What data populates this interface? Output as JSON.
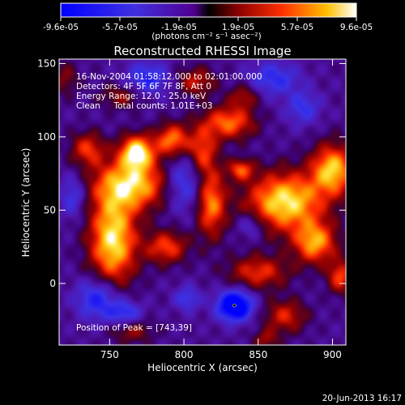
{
  "colorbar": {
    "ticks": [
      "-9.6e-05",
      "-5.7e-05",
      "-1.9e-05",
      "1.9e-05",
      "5.7e-05",
      "9.6e-05"
    ],
    "unit_label": "(photons cm⁻² s⁻¹ asec⁻²)",
    "range": [
      -9.6e-05,
      9.6e-05
    ]
  },
  "chart_data": {
    "type": "heatmap",
    "title": "Reconstructed RHESSI Image",
    "xlabel": "Heliocentric X (arcsec)",
    "ylabel": "Heliocentric Y (arcsec)",
    "xlim": [
      716,
      909
    ],
    "ylim": [
      -42,
      153
    ],
    "x_ticks": [
      "750",
      "800",
      "850",
      "900"
    ],
    "y_ticks": [
      "0",
      "50",
      "100",
      "150"
    ],
    "annotations": [
      "16-Nov-2004 01:58:12.000 to 02:01:00.000",
      "Detectors: 4F 5F 6F 7F 8F, Att 0",
      "Energy Range: 12.0 - 25.0 keV",
      "Clean     Total counts: 1.01E+03"
    ],
    "peak_label": "Position of Peak = [743,39]",
    "peak": [
      743,
      39
    ],
    "marker": [
      834,
      -15
    ],
    "blobs": [
      {
        "x": 752,
        "y": 30,
        "sx": 11,
        "sy": 22,
        "a": 1.0
      },
      {
        "x": 765,
        "y": 68,
        "sx": 18,
        "sy": 12,
        "a": 0.9
      },
      {
        "x": 768,
        "y": 90,
        "sx": 8,
        "sy": 8,
        "a": 1.0
      },
      {
        "x": 792,
        "y": 98,
        "sx": 8,
        "sy": 8,
        "a": 0.75
      },
      {
        "x": 788,
        "y": 25,
        "sx": 10,
        "sy": 8,
        "a": 0.6
      },
      {
        "x": 735,
        "y": 92,
        "sx": 8,
        "sy": 8,
        "a": 0.55
      },
      {
        "x": 808,
        "y": 138,
        "sx": 9,
        "sy": 7,
        "a": 0.45
      },
      {
        "x": 758,
        "y": 128,
        "sx": 10,
        "sy": 6,
        "a": 0.35
      },
      {
        "x": 818,
        "y": 55,
        "sx": 7,
        "sy": 16,
        "a": 0.75
      },
      {
        "x": 812,
        "y": 90,
        "sx": 7,
        "sy": 12,
        "a": 0.6
      },
      {
        "x": 830,
        "y": 110,
        "sx": 12,
        "sy": 8,
        "a": 0.7
      },
      {
        "x": 838,
        "y": 78,
        "sx": 6,
        "sy": 5,
        "a": 0.6
      },
      {
        "x": 868,
        "y": 56,
        "sx": 18,
        "sy": 14,
        "a": 1.0
      },
      {
        "x": 900,
        "y": 78,
        "sx": 10,
        "sy": 12,
        "a": 0.9
      },
      {
        "x": 888,
        "y": 28,
        "sx": 10,
        "sy": 10,
        "a": 0.8
      },
      {
        "x": 905,
        "y": 5,
        "sx": 6,
        "sy": 8,
        "a": 0.6
      },
      {
        "x": 850,
        "y": 8,
        "sx": 14,
        "sy": 8,
        "a": 0.55
      },
      {
        "x": 868,
        "y": -22,
        "sx": 10,
        "sy": 8,
        "a": 0.5
      },
      {
        "x": 765,
        "y": -32,
        "sx": 10,
        "sy": 6,
        "a": 0.35
      },
      {
        "x": 840,
        "y": 128,
        "sx": 7,
        "sy": 6,
        "a": 0.4
      },
      {
        "x": 855,
        "y": -38,
        "sx": 6,
        "sy": 5,
        "a": 0.35
      },
      {
        "x": 802,
        "y": -10,
        "sx": 6,
        "sy": 6,
        "a": -0.4
      },
      {
        "x": 834,
        "y": -15,
        "sx": 8,
        "sy": 7,
        "a": -1.1
      },
      {
        "x": 742,
        "y": -10,
        "sx": 10,
        "sy": 10,
        "a": -0.6
      },
      {
        "x": 760,
        "y": -20,
        "sx": 8,
        "sy": 6,
        "a": -0.5
      },
      {
        "x": 800,
        "y": 70,
        "sx": 10,
        "sy": 14,
        "a": -0.5
      },
      {
        "x": 775,
        "y": 140,
        "sx": 10,
        "sy": 8,
        "a": -0.5
      },
      {
        "x": 860,
        "y": 140,
        "sx": 12,
        "sy": 8,
        "a": -0.45
      },
      {
        "x": 880,
        "y": 120,
        "sx": 8,
        "sy": 8,
        "a": -0.4
      },
      {
        "x": 725,
        "y": 60,
        "sx": 6,
        "sy": 10,
        "a": -0.4
      },
      {
        "x": 720,
        "y": 140,
        "sx": 6,
        "sy": 8,
        "a": 0.3
      },
      {
        "x": 845,
        "y": 40,
        "sx": 6,
        "sy": 6,
        "a": -0.35
      }
    ]
  },
  "footer_date": "20-Jun-2013 16:17"
}
